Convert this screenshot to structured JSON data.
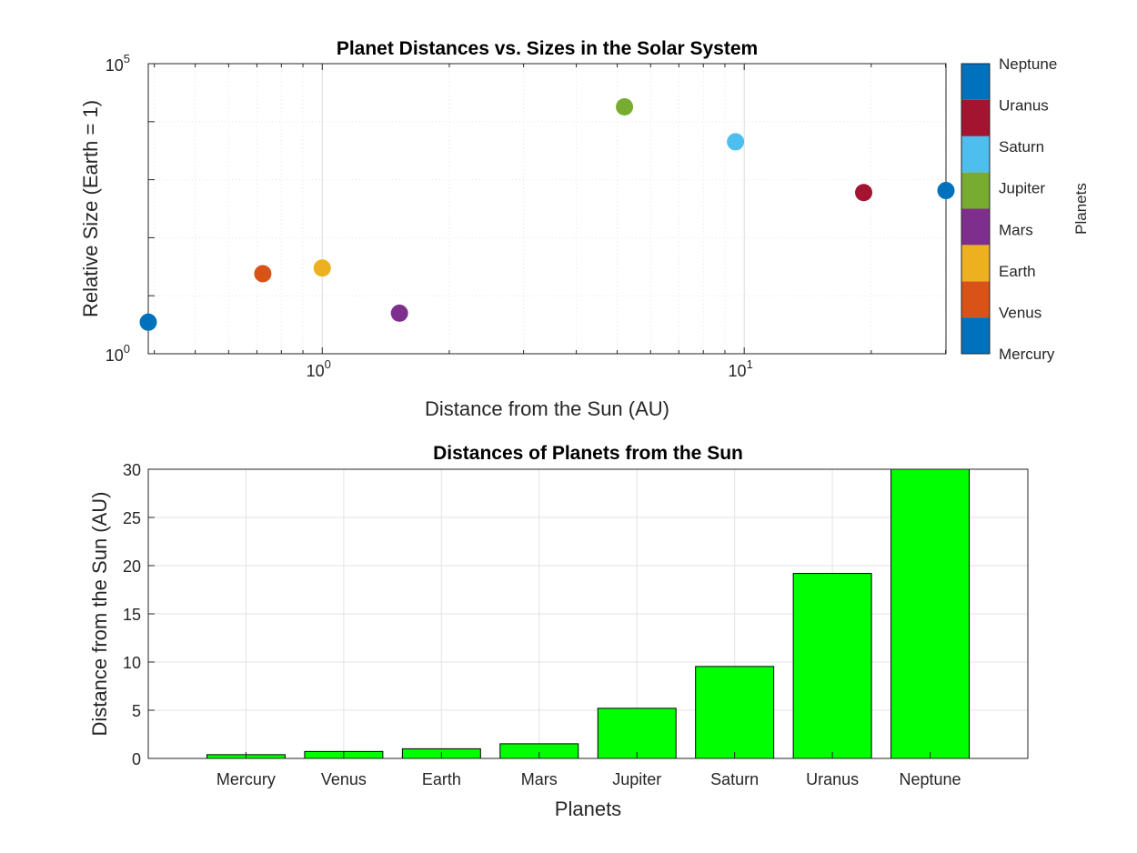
{
  "chart_data": [
    {
      "type": "scatter",
      "title": "Planet Distances vs. Sizes in the Solar System",
      "xlabel": "Distance from the Sun (AU)",
      "ylabel": "Relative Size (Earth = 1)",
      "xscale": "log",
      "yscale": "log",
      "xlim": [
        0.387,
        30.07
      ],
      "ylim": [
        1,
        100000
      ],
      "xticks": [
        {
          "value": 1,
          "base": "10",
          "exp": "0"
        },
        {
          "value": 10,
          "base": "10",
          "exp": "1"
        }
      ],
      "yticks": [
        {
          "value": 1,
          "base": "10",
          "exp": "0"
        },
        {
          "value": 100000,
          "base": "10",
          "exp": "5"
        }
      ],
      "grid": true,
      "minor_grid": true,
      "points": [
        {
          "name": "Mercury",
          "x": 0.387,
          "y": 3.5,
          "color": "#0072BD"
        },
        {
          "name": "Venus",
          "x": 0.723,
          "y": 24,
          "color": "#D95319"
        },
        {
          "name": "Earth",
          "x": 1.0,
          "y": 30,
          "color": "#EDB120"
        },
        {
          "name": "Mars",
          "x": 1.524,
          "y": 5,
          "color": "#7E2F8E"
        },
        {
          "name": "Jupiter",
          "x": 5.203,
          "y": 18000,
          "color": "#77AC30"
        },
        {
          "name": "Saturn",
          "x": 9.537,
          "y": 4500,
          "color": "#4DBEEE"
        },
        {
          "name": "Uranus",
          "x": 19.19,
          "y": 600,
          "color": "#A2142F"
        },
        {
          "name": "Neptune",
          "x": 30.07,
          "y": 650,
          "color": "#0072BD"
        }
      ],
      "colorbar": {
        "label": "Planets",
        "position": "right",
        "entries": [
          {
            "label": "Mercury",
            "color": "#0072BD"
          },
          {
            "label": "Venus",
            "color": "#D95319"
          },
          {
            "label": "Earth",
            "color": "#EDB120"
          },
          {
            "label": "Mars",
            "color": "#7E2F8E"
          },
          {
            "label": "Jupiter",
            "color": "#77AC30"
          },
          {
            "label": "Saturn",
            "color": "#4DBEEE"
          },
          {
            "label": "Uranus",
            "color": "#A2142F"
          },
          {
            "label": "Neptune",
            "color": "#0072BD"
          }
        ]
      }
    },
    {
      "type": "bar",
      "title": "Distances of Planets from the Sun",
      "xlabel": "Planets",
      "ylabel": "Distance from the Sun (AU)",
      "categories": [
        "Mercury",
        "Venus",
        "Earth",
        "Mars",
        "Jupiter",
        "Saturn",
        "Uranus",
        "Neptune"
      ],
      "values": [
        0.39,
        0.72,
        1.0,
        1.52,
        5.2,
        9.54,
        19.19,
        30.07
      ],
      "ylim": [
        0,
        30
      ],
      "yticks": [
        "0",
        "5",
        "10",
        "15",
        "20",
        "25",
        "30"
      ],
      "grid": true,
      "bar_color": "#00FF00"
    }
  ]
}
